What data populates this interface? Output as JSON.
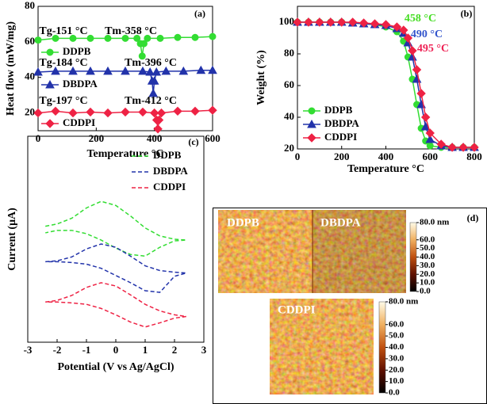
{
  "chart_data": [
    {
      "type": "line",
      "panel": "(a)",
      "xlabel": "Temperature °C",
      "ylabel": "Heat flow (mW/mg)",
      "xlim": [
        0,
        600
      ],
      "xticks": [
        0,
        200,
        400,
        600
      ],
      "ylim": [
        10,
        80
      ],
      "yticks": [
        20,
        40,
        60,
        80
      ],
      "legend": "left",
      "annotations": [
        {
          "text": "Tg-151 °C"
        },
        {
          "text": "Tm-358 °C"
        },
        {
          "text": "Tg-184 °C"
        },
        {
          "text": "Tm-396 °C"
        },
        {
          "text": "Tg-197 °C"
        },
        {
          "text": "Tm-412 °C"
        }
      ],
      "series": [
        {
          "name": "DDPB",
          "color": "#33dd33",
          "marker": "circle",
          "x": [
            0,
            60,
            120,
            180,
            240,
            300,
            340,
            352,
            358,
            364,
            376,
            420,
            480,
            540,
            600
          ],
          "values": [
            61,
            62,
            62,
            62,
            62,
            62,
            62,
            59,
            52,
            59,
            62,
            62,
            62.5,
            62.5,
            63
          ]
        },
        {
          "name": "DBDPA",
          "color": "#2233aa",
          "marker": "triangle",
          "x": [
            0,
            60,
            120,
            180,
            240,
            300,
            360,
            385,
            392,
            396,
            400,
            407,
            440,
            500,
            560,
            600
          ],
          "values": [
            43,
            43.5,
            43.5,
            43.5,
            43.5,
            43.5,
            43.5,
            43,
            38,
            31,
            38,
            43,
            43.5,
            43.5,
            44,
            44
          ]
        },
        {
          "name": "CDDPI",
          "color": "#ee2244",
          "marker": "diamond",
          "x": [
            0,
            60,
            120,
            180,
            240,
            300,
            360,
            400,
            408,
            412,
            416,
            424,
            480,
            540,
            600
          ],
          "values": [
            20,
            21,
            20,
            20.5,
            20,
            20.5,
            20.5,
            20,
            16,
            11,
            16,
            20,
            21,
            21,
            21.5
          ]
        }
      ]
    },
    {
      "type": "line",
      "panel": "(b)",
      "xlabel": "Temperature °C",
      "ylabel": "Weight (%)",
      "xlim": [
        0,
        800
      ],
      "xticks": [
        0,
        200,
        400,
        600,
        800
      ],
      "ylim": [
        20,
        110
      ],
      "yticks": [
        20,
        40,
        60,
        80,
        100
      ],
      "legend": "lower left",
      "annotations": [
        {
          "text": "458 °C",
          "color": "#44dd22"
        },
        {
          "text": "490 °C",
          "color": "#3355cc"
        },
        {
          "text": "495 °C",
          "color": "#ee2255"
        }
      ],
      "series": [
        {
          "name": "DDPB",
          "color": "#33dd33",
          "marker": "circle",
          "x": [
            0,
            50,
            100,
            150,
            200,
            250,
            300,
            350,
            400,
            450,
            480,
            500,
            520,
            540,
            560,
            580,
            600,
            650,
            700,
            750,
            800
          ],
          "values": [
            100,
            100,
            100,
            100,
            100,
            99.5,
            99,
            98.5,
            97,
            94,
            88,
            78,
            64,
            48,
            33,
            25,
            22,
            21,
            21,
            21,
            21
          ]
        },
        {
          "name": "DBDPA",
          "color": "#2233aa",
          "marker": "triangle",
          "x": [
            0,
            50,
            100,
            150,
            200,
            250,
            300,
            350,
            400,
            450,
            480,
            500,
            520,
            540,
            560,
            580,
            600,
            650,
            700,
            750,
            800
          ],
          "values": [
            100,
            100,
            100,
            100,
            100,
            99.5,
            99,
            98.5,
            98,
            96,
            93,
            87,
            78,
            64,
            48,
            34,
            26,
            22,
            21,
            21,
            21
          ]
        },
        {
          "name": "CDDPI",
          "color": "#ee2244",
          "marker": "diamond",
          "x": [
            0,
            50,
            100,
            150,
            200,
            250,
            300,
            350,
            400,
            450,
            480,
            500,
            520,
            540,
            560,
            580,
            600,
            650,
            700,
            750,
            800
          ],
          "values": [
            100,
            100,
            100,
            100,
            100,
            100,
            99.5,
            99,
            98.5,
            97,
            95,
            90,
            82,
            70,
            55,
            40,
            30,
            23,
            21,
            21,
            21
          ]
        }
      ]
    },
    {
      "type": "line",
      "panel": "(c)",
      "xlabel": "Potential (V vs Ag/AgCl)",
      "ylabel": "Current (μA)",
      "xlim": [
        -3,
        3
      ],
      "xticks": [
        -3,
        -2,
        -1,
        0,
        1,
        2,
        3
      ],
      "ylim": [
        0,
        100
      ],
      "legend": "upper right",
      "linestyle": "dashed",
      "series": [
        {
          "name": "DDPB",
          "color": "#33dd33",
          "x": [
            -2.4,
            -2,
            -1.5,
            -1,
            -0.5,
            0,
            0.5,
            1,
            1.5,
            2,
            2.4,
            2,
            1.5,
            1,
            0.5,
            0,
            -0.5,
            -1,
            -1.5,
            -2,
            -2.4
          ],
          "values": [
            56.3,
            57.4,
            60.2,
            65.2,
            68.4,
            66.4,
            61.3,
            55.5,
            51.6,
            50,
            49.6,
            49.2,
            46.1,
            41.8,
            42.6,
            45.7,
            49.6,
            52.7,
            54.3,
            54.3,
            53.1
          ]
        },
        {
          "name": "DBDPA",
          "color": "#2233aa",
          "x": [
            -2.4,
            -2,
            -1.5,
            -1,
            -0.5,
            0,
            0.5,
            1,
            1.5,
            2,
            2.4,
            2,
            1.5,
            1,
            0.5,
            0,
            -0.5,
            -1,
            -1.5,
            -2,
            -2.4
          ],
          "values": [
            39.1,
            39.5,
            41.4,
            45.3,
            47.7,
            46.1,
            41.8,
            37.1,
            34.8,
            34,
            33.6,
            32,
            24.2,
            25,
            28.9,
            32.4,
            35.9,
            37.9,
            38.7,
            39.1,
            39.1
          ]
        },
        {
          "name": "CDDPI",
          "color": "#ee2244",
          "x": [
            -2.4,
            -2,
            -1.5,
            -1,
            -0.5,
            0,
            0.5,
            1,
            1.5,
            2,
            2.4,
            2,
            1.5,
            1,
            0.5,
            0,
            -0.5,
            -1,
            -1.5,
            -2,
            -2.4
          ],
          "values": [
            19.5,
            20.3,
            22.7,
            26.6,
            28.9,
            27.3,
            23,
            18.4,
            15.2,
            13.3,
            12.5,
            11.7,
            9.4,
            7.4,
            9.8,
            13.3,
            16.4,
            18.4,
            19.1,
            19.5,
            19.5
          ]
        }
      ]
    },
    {
      "type": "image",
      "panel": "(d)",
      "labels": [
        "DDPB",
        "DBDPA",
        "CDDPI"
      ],
      "colorbars": [
        {
          "ylim": [
            0,
            80
          ],
          "yticks": [
            {
              "value": 80,
              "label": "80.0 nm"
            },
            {
              "value": 60,
              "label": "60.0"
            },
            {
              "value": 50,
              "label": "50.0"
            },
            {
              "value": 40,
              "label": "40.0"
            },
            {
              "value": 30,
              "label": "30.0"
            },
            {
              "value": 20,
              "label": "20.0"
            },
            {
              "value": 10,
              "label": "10.0"
            },
            {
              "value": 0,
              "label": "0.0"
            }
          ]
        },
        {
          "ylim": [
            0,
            80
          ],
          "yticks": [
            {
              "value": 80,
              "label": "80.0 nm"
            },
            {
              "value": 60,
              "label": "60.0"
            },
            {
              "value": 50,
              "label": "50.0"
            },
            {
              "value": 40,
              "label": "40.0"
            },
            {
              "value": 30,
              "label": "30.0"
            },
            {
              "value": 20,
              "label": "20.0"
            },
            {
              "value": 10,
              "label": "10.0"
            },
            {
              "value": 0,
              "label": "0.0"
            }
          ]
        }
      ]
    }
  ]
}
